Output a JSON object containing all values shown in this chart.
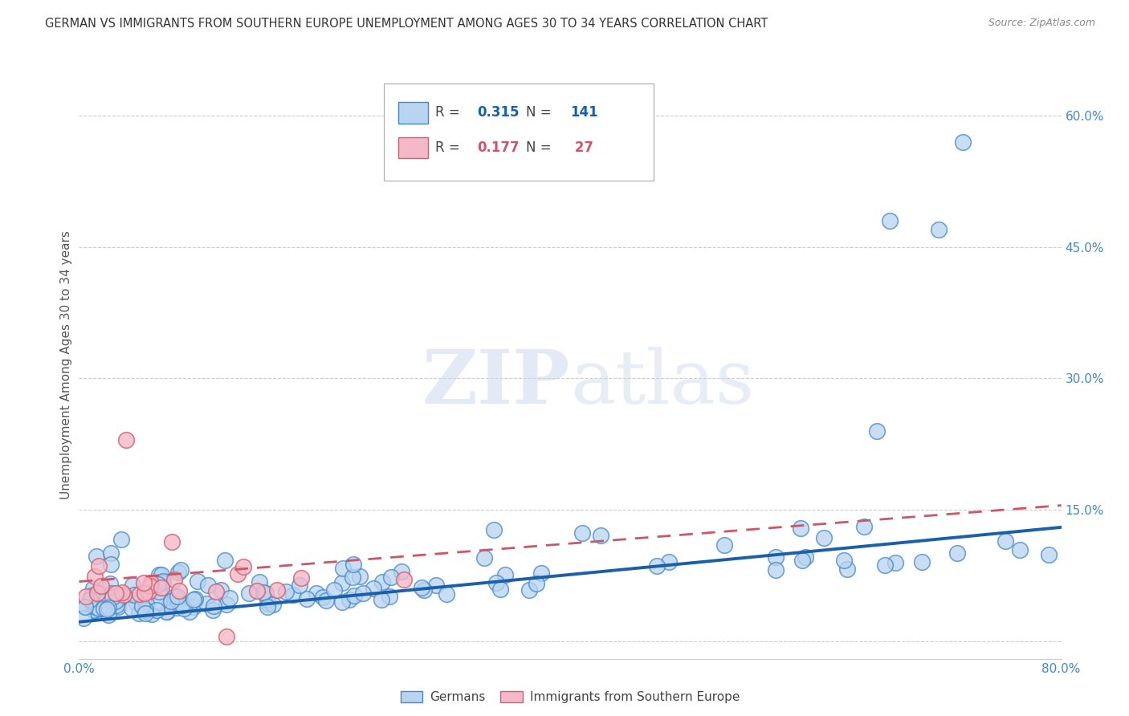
{
  "title": "GERMAN VS IMMIGRANTS FROM SOUTHERN EUROPE UNEMPLOYMENT AMONG AGES 30 TO 34 YEARS CORRELATION CHART",
  "source": "Source: ZipAtlas.com",
  "ylabel": "Unemployment Among Ages 30 to 34 years",
  "watermark_zip": "ZIP",
  "watermark_atlas": "atlas",
  "xlim": [
    0.0,
    0.8
  ],
  "ylim": [
    -0.02,
    0.65
  ],
  "yticks": [
    0.0,
    0.15,
    0.3,
    0.45,
    0.6
  ],
  "yticklabels_right": [
    "",
    "15.0%",
    "30.0%",
    "45.0%",
    "60.0%"
  ],
  "xticks": [
    0.0,
    0.2,
    0.4,
    0.6,
    0.8
  ],
  "xticklabels": [
    "0.0%",
    "",
    "",
    "",
    "80.0%"
  ],
  "blue_color": "#b8d4f0",
  "blue_edge_color": "#4488cc",
  "blue_line_color": "#1a5faa",
  "pink_color": "#f4b8c8",
  "pink_edge_color": "#d06070",
  "pink_line_color": "#cc5566",
  "background_color": "#ffffff",
  "grid_color": "#cccccc",
  "title_color": "#333333",
  "axis_label_color": "#4488cc",
  "ylabel_color": "#555555",
  "R_blue": "0.315",
  "N_blue": "141",
  "R_pink": "0.177",
  "N_pink": "27",
  "legend_label_blue": "Germans",
  "legend_label_pink": "Immigrants from Southern Europe"
}
